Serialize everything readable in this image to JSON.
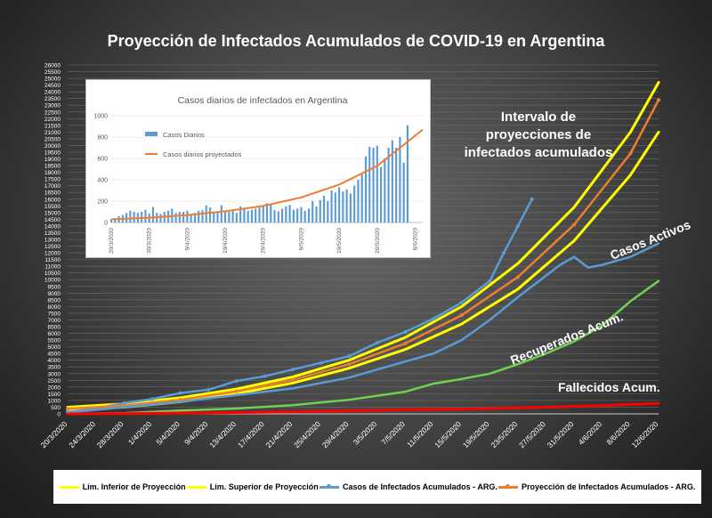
{
  "chart_data": [
    {
      "type": "line",
      "title": "Proyección de Infectados Acumulados de COVID-19 en Argentina",
      "ylim": [
        0,
        26000
      ],
      "y_ticks": [
        0,
        500,
        1000,
        1500,
        2000,
        2500,
        3000,
        3500,
        4000,
        4500,
        5000,
        5500,
        6000,
        6500,
        7000,
        7500,
        8000,
        8500,
        9000,
        9500,
        10000,
        10500,
        11000,
        11500,
        12000,
        12500,
        13000,
        13500,
        14000,
        14500,
        15000,
        15500,
        16000,
        16500,
        17000,
        17500,
        18000,
        18500,
        19000,
        19500,
        20000,
        20500,
        21000,
        21500,
        22000,
        22500,
        23000,
        23500,
        24000,
        24500,
        25000,
        25500,
        26000
      ],
      "x_tick_labels": [
        "20/3/2020",
        "24/3/2020",
        "28/3/2020",
        "1/4/2020",
        "5/4/2020",
        "9/4/2020",
        "13/4/2020",
        "17/4/2020",
        "21/4/2020",
        "25/4/2020",
        "29/4/2020",
        "3/5/2020",
        "7/5/2020",
        "11/5/2020",
        "15/5/2020",
        "19/5/2020",
        "23/5/2020",
        "27/5/2020",
        "31/5/2020",
        "4/6/2020",
        "8/6/2020",
        "12/6/2020"
      ],
      "x_range_days": [
        0,
        84
      ],
      "annotations": [
        "Intervalo de",
        "proyecciones de",
        "infectados acumulados",
        "Casos Activos",
        "Recuperados Acum.",
        "Fallecidos Acum."
      ],
      "series": [
        {
          "name": "Lím. Inferior de Proyección",
          "color": "#ffff00",
          "x": [
            0,
            8,
            16,
            24,
            32,
            40,
            48,
            56,
            64,
            72,
            80,
            84
          ],
          "y": [
            280,
            500,
            900,
            1500,
            2300,
            3400,
            4800,
            6700,
            9300,
            12900,
            17800,
            21000
          ]
        },
        {
          "name": "Lím. Superior de Proyección",
          "color": "#ffff00",
          "x": [
            0,
            8,
            16,
            24,
            32,
            40,
            48,
            56,
            64,
            72,
            80,
            84
          ],
          "y": [
            500,
            750,
            1200,
            1850,
            2750,
            4000,
            5700,
            8000,
            11200,
            15400,
            21000,
            24700
          ]
        },
        {
          "name": "Casos de Infectados Acumulados - ARG.",
          "color": "#5b9bd5",
          "x": [
            0,
            4,
            8,
            12,
            16,
            20,
            24,
            28,
            32,
            36,
            40,
            44,
            48,
            52,
            56,
            60,
            62,
            64,
            66
          ],
          "y": [
            130,
            400,
            800,
            1100,
            1550,
            1800,
            2450,
            2800,
            3300,
            3800,
            4300,
            5300,
            6100,
            7100,
            8300,
            9900,
            12000,
            14000,
            16000
          ]
        },
        {
          "name": "Proyección de Infectados Acumulados - ARG.",
          "color": "#ed7d31",
          "x": [
            0,
            8,
            16,
            24,
            32,
            40,
            48,
            56,
            64,
            72,
            80,
            84
          ],
          "y": [
            380,
            620,
            1050,
            1680,
            2530,
            3700,
            5250,
            7350,
            10200,
            14100,
            19400,
            23400
          ]
        },
        {
          "name": "Casos Activos",
          "color": "#5b9bd5",
          "x": [
            0,
            8,
            16,
            24,
            32,
            40,
            44,
            48,
            52,
            56,
            60,
            64,
            68,
            70,
            72,
            74,
            76,
            80,
            84
          ],
          "y": [
            100,
            500,
            900,
            1400,
            1900,
            2700,
            3300,
            3900,
            4500,
            5500,
            7000,
            8700,
            10300,
            11100,
            11700,
            10900,
            11100,
            11700,
            12700
          ]
        },
        {
          "name": "Recuperados Acum.",
          "color": "#70d050",
          "x": [
            0,
            8,
            16,
            24,
            32,
            40,
            48,
            52,
            56,
            60,
            64,
            68,
            72,
            76,
            80,
            84
          ],
          "y": [
            0,
            50,
            250,
            400,
            650,
            1050,
            1650,
            2250,
            2600,
            3000,
            3700,
            4500,
            5400,
            6600,
            8400,
            9900
          ]
        },
        {
          "name": "Fallecidos Acum.",
          "color": "#ff0000",
          "x": [
            0,
            8,
            16,
            24,
            32,
            40,
            48,
            56,
            64,
            72,
            80,
            84
          ],
          "y": [
            3,
            20,
            60,
            100,
            150,
            230,
            300,
            360,
            450,
            560,
            700,
            780
          ]
        }
      ]
    },
    {
      "type": "bar",
      "title": "Casos diarios de infectados en Argentina",
      "ylim": [
        0,
        1000
      ],
      "y_ticks": [
        0,
        200,
        400,
        600,
        800,
        1000
      ],
      "x_tick_labels": [
        "20/3/2020",
        "30/3/2020",
        "9/4/2020",
        "19/4/2020",
        "29/4/2020",
        "9/5/2020",
        "19/5/2020",
        "29/5/2020",
        "8/6/2020"
      ],
      "x_range_days": [
        0,
        82
      ],
      "series": [
        {
          "name": "Casos Diarios",
          "color": "#5b9bd5",
          "values": [
            30,
            40,
            60,
            70,
            90,
            110,
            100,
            90,
            100,
            120,
            85,
            145,
            90,
            80,
            100,
            110,
            130,
            90,
            100,
            100,
            110,
            80,
            90,
            110,
            115,
            160,
            140,
            90,
            100,
            160,
            110,
            100,
            110,
            90,
            150,
            130,
            110,
            120,
            130,
            140,
            150,
            180,
            165,
            115,
            105,
            130,
            150,
            165,
            120,
            130,
            145,
            110,
            130,
            200,
            150,
            210,
            250,
            200,
            300,
            280,
            330,
            290,
            310,
            270,
            345,
            400,
            450,
            620,
            710,
            700,
            720,
            520,
            600,
            700,
            770,
            700,
            800,
            560,
            910
          ]
        },
        {
          "name": "Casos diarios proyectados",
          "color": "#ed7d31",
          "x": [
            0,
            10,
            20,
            30,
            40,
            50,
            60,
            70,
            82
          ],
          "y": [
            30,
            45,
            70,
            105,
            155,
            235,
            355,
            530,
            870
          ]
        }
      ]
    }
  ],
  "legend": [
    {
      "label": "Lím. Inferior de Proyección",
      "color": "#ffff00",
      "marker": false
    },
    {
      "label": "Lím. Superior de Proyección",
      "color": "#ffff00",
      "marker": false
    },
    {
      "label": "Casos de Infectados Acumulados - ARG.",
      "color": "#5b9bd5",
      "marker": true
    },
    {
      "label": "Proyección de Infectados Acumulados - ARG.",
      "color": "#ed7d31",
      "marker": true
    }
  ]
}
